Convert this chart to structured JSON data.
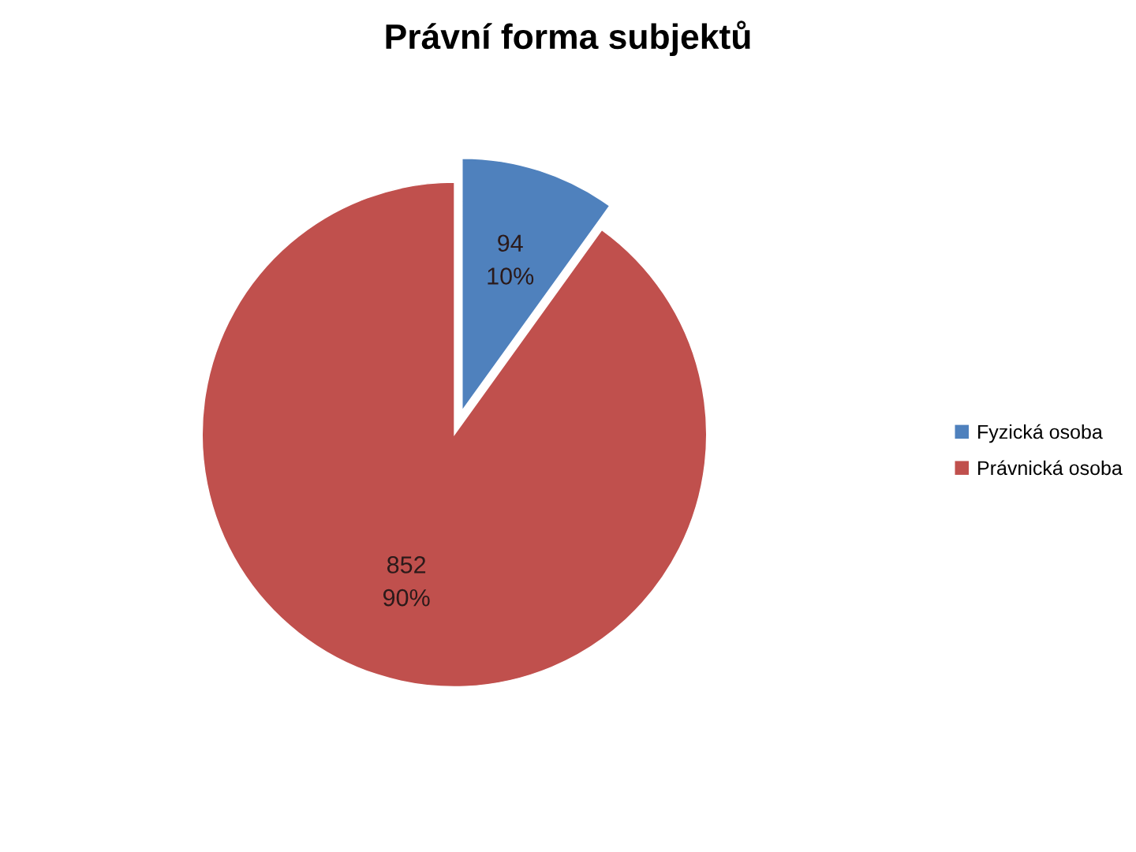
{
  "chart_data": {
    "type": "pie",
    "title": "Právní forma subjektů",
    "categories": [
      "Fyzická osoba",
      "Právnická osoba"
    ],
    "values": [
      94,
      852
    ],
    "colors": [
      "#4f81bd",
      "#c0504d"
    ],
    "value_labels": [
      "94\n10%",
      "852\n90%"
    ],
    "legend": "right"
  }
}
